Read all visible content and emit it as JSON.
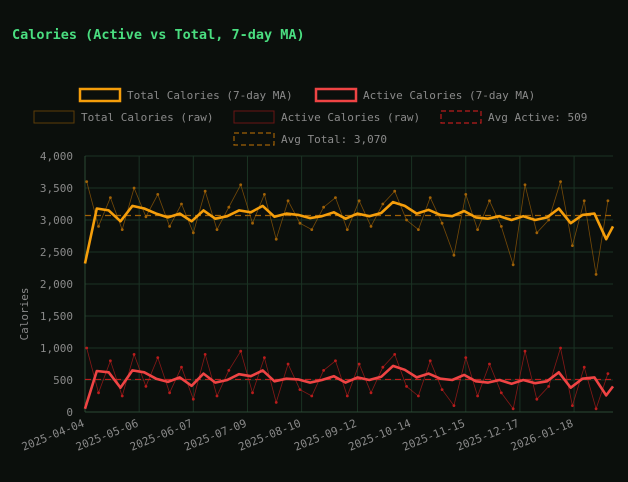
{
  "chart_data": {
    "type": "line",
    "title": "Calories (Active vs Total, 7-day MA)",
    "xlabel": "",
    "ylabel": "Calories",
    "ylim": [
      0,
      4000
    ],
    "y_ticks": [
      "0",
      "500",
      "1,000",
      "1,500",
      "2,000",
      "2,500",
      "3,000",
      "3,500",
      "4,000"
    ],
    "x_ticks": [
      "2025-04-04",
      "2025-05-06",
      "2025-06-07",
      "2025-07-09",
      "2025-08-10",
      "2025-09-12",
      "2025-10-14",
      "2025-11-15",
      "2025-12-17",
      "2026-01-18"
    ],
    "x_range": [
      "2025-04-04",
      "2026-02-10"
    ],
    "grid": true,
    "legend_position": "top",
    "colors": {
      "total_ma": "#f59e0b",
      "active_ma": "#ef4444",
      "total_raw": "#a16207",
      "active_raw": "#b91c1c",
      "avg_active": "#b91c1c",
      "avg_total": "#a16207",
      "grid": "#1b3324",
      "axis_text": "#8a8a8a",
      "title": "#4ade80",
      "background": "#0b0f0c"
    },
    "series": [
      {
        "name": "Total Calories (7-day MA)",
        "style": "line",
        "x": [
          "2025-04-04",
          "2025-04-11",
          "2025-04-18",
          "2025-04-25",
          "2025-05-02",
          "2025-05-09",
          "2025-05-16",
          "2025-05-23",
          "2025-05-30",
          "2025-06-06",
          "2025-06-13",
          "2025-06-20",
          "2025-06-27",
          "2025-07-04",
          "2025-07-11",
          "2025-07-18",
          "2025-07-25",
          "2025-08-01",
          "2025-08-08",
          "2025-08-15",
          "2025-08-22",
          "2025-08-29",
          "2025-09-05",
          "2025-09-12",
          "2025-09-19",
          "2025-09-26",
          "2025-10-03",
          "2025-10-10",
          "2025-10-17",
          "2025-10-24",
          "2025-10-31",
          "2025-11-07",
          "2025-11-14",
          "2025-11-21",
          "2025-11-28",
          "2025-12-05",
          "2025-12-12",
          "2025-12-19",
          "2025-12-26",
          "2026-01-02",
          "2026-01-09",
          "2026-01-16",
          "2026-01-23",
          "2026-01-30",
          "2026-02-06",
          "2026-02-10"
        ],
        "values": [
          2320,
          3180,
          3150,
          2980,
          3220,
          3180,
          3100,
          3040,
          3100,
          2980,
          3150,
          3020,
          3060,
          3150,
          3120,
          3220,
          3050,
          3100,
          3080,
          3030,
          3060,
          3120,
          3020,
          3100,
          3060,
          3110,
          3280,
          3220,
          3100,
          3160,
          3080,
          3060,
          3140,
          3040,
          3020,
          3060,
          3000,
          3060,
          3000,
          3040,
          3180,
          2950,
          3080,
          3100,
          2700,
          2900
        ]
      },
      {
        "name": "Active Calories (7-day MA)",
        "style": "line",
        "x": [
          "2025-04-04",
          "2025-04-11",
          "2025-04-18",
          "2025-04-25",
          "2025-05-02",
          "2025-05-09",
          "2025-05-16",
          "2025-05-23",
          "2025-05-30",
          "2025-06-06",
          "2025-06-13",
          "2025-06-20",
          "2025-06-27",
          "2025-07-04",
          "2025-07-11",
          "2025-07-18",
          "2025-07-25",
          "2025-08-01",
          "2025-08-08",
          "2025-08-15",
          "2025-08-22",
          "2025-08-29",
          "2025-09-05",
          "2025-09-12",
          "2025-09-19",
          "2025-09-26",
          "2025-10-03",
          "2025-10-10",
          "2025-10-17",
          "2025-10-24",
          "2025-10-31",
          "2025-11-07",
          "2025-11-14",
          "2025-11-21",
          "2025-11-28",
          "2025-12-05",
          "2025-12-12",
          "2025-12-19",
          "2025-12-26",
          "2026-01-02",
          "2026-01-09",
          "2026-01-16",
          "2026-01-23",
          "2026-01-30",
          "2026-02-06",
          "2026-02-10"
        ],
        "values": [
          50,
          640,
          620,
          380,
          650,
          620,
          520,
          470,
          540,
          410,
          600,
          460,
          500,
          590,
          560,
          650,
          480,
          520,
          510,
          460,
          500,
          560,
          460,
          540,
          500,
          550,
          720,
          660,
          540,
          600,
          520,
          500,
          580,
          480,
          460,
          500,
          440,
          500,
          450,
          480,
          620,
          380,
          520,
          540,
          260,
          400
        ]
      },
      {
        "name": "Total Calories (raw)",
        "style": "points",
        "x": [
          "2025-04-05",
          "2025-04-12",
          "2025-04-19",
          "2025-04-26",
          "2025-05-03",
          "2025-05-10",
          "2025-05-17",
          "2025-05-24",
          "2025-05-31",
          "2025-06-07",
          "2025-06-14",
          "2025-06-21",
          "2025-06-28",
          "2025-07-05",
          "2025-07-12",
          "2025-07-19",
          "2025-07-26",
          "2025-08-02",
          "2025-08-09",
          "2025-08-16",
          "2025-08-23",
          "2025-08-30",
          "2025-09-06",
          "2025-09-13",
          "2025-09-20",
          "2025-09-27",
          "2025-10-04",
          "2025-10-11",
          "2025-10-18",
          "2025-10-25",
          "2025-11-01",
          "2025-11-08",
          "2025-11-15",
          "2025-11-22",
          "2025-11-29",
          "2025-12-06",
          "2025-12-13",
          "2025-12-20",
          "2025-12-27",
          "2026-01-03",
          "2026-01-10",
          "2026-01-17",
          "2026-01-24",
          "2026-01-31",
          "2026-02-07"
        ],
        "values": [
          3600,
          2900,
          3350,
          2850,
          3500,
          3050,
          3400,
          2900,
          3250,
          2800,
          3450,
          2850,
          3200,
          3550,
          2950,
          3400,
          2700,
          3300,
          2950,
          2850,
          3200,
          3350,
          2850,
          3300,
          2900,
          3250,
          3450,
          3000,
          2850,
          3350,
          2950,
          2450,
          3400,
          2850,
          3300,
          2900,
          2300,
          3550,
          2800,
          3000,
          3600,
          2600,
          3300,
          2150,
          3300
        ]
      },
      {
        "name": "Active Calories (raw)",
        "style": "points",
        "x": [
          "2025-04-05",
          "2025-04-12",
          "2025-04-19",
          "2025-04-26",
          "2025-05-03",
          "2025-05-10",
          "2025-05-17",
          "2025-05-24",
          "2025-05-31",
          "2025-06-07",
          "2025-06-14",
          "2025-06-21",
          "2025-06-28",
          "2025-07-05",
          "2025-07-12",
          "2025-07-19",
          "2025-07-26",
          "2025-08-02",
          "2025-08-09",
          "2025-08-16",
          "2025-08-23",
          "2025-08-30",
          "2025-09-06",
          "2025-09-13",
          "2025-09-20",
          "2025-09-27",
          "2025-10-04",
          "2025-10-11",
          "2025-10-18",
          "2025-10-25",
          "2025-11-01",
          "2025-11-08",
          "2025-11-15",
          "2025-11-22",
          "2025-11-29",
          "2025-12-06",
          "2025-12-13",
          "2025-12-20",
          "2025-12-27",
          "2026-01-03",
          "2026-01-10",
          "2026-01-17",
          "2026-01-24",
          "2026-01-31",
          "2026-02-07"
        ],
        "values": [
          1000,
          300,
          800,
          250,
          900,
          400,
          850,
          300,
          700,
          200,
          900,
          250,
          650,
          950,
          300,
          850,
          150,
          750,
          350,
          250,
          650,
          800,
          250,
          750,
          300,
          700,
          900,
          400,
          250,
          800,
          350,
          100,
          850,
          250,
          750,
          300,
          50,
          950,
          200,
          400,
          1000,
          100,
          700,
          50,
          600
        ]
      },
      {
        "name": "Avg Active: 509",
        "style": "hline",
        "value": 509
      },
      {
        "name": "Avg Total: 3,070",
        "style": "hline",
        "value": 3070
      }
    ]
  }
}
